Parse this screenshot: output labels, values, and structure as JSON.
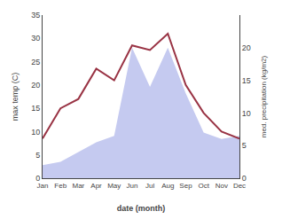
{
  "chart_data": {
    "type": "line",
    "xlabel": "date (month)",
    "ylabel": "max temp (C)",
    "y2label": "med. precipitation (kg/m2)",
    "categories": [
      "Jan",
      "Feb",
      "Mar",
      "Apr",
      "May",
      "Jun",
      "Jul",
      "Aug",
      "Sep",
      "Oct",
      "Nov",
      "Dec"
    ],
    "series": [
      {
        "type": "area",
        "axis": "y2",
        "color": "#c5caf0",
        "values": [
          2.0,
          2.5,
          4.0,
          5.5,
          6.5,
          20.0,
          14.0,
          20.0,
          13.0,
          7.0,
          6.0,
          6.5
        ]
      },
      {
        "type": "line",
        "color": "#993344",
        "values": [
          8.5,
          15.0,
          17.0,
          23.5,
          21.0,
          28.5,
          27.5,
          31.0,
          20.0,
          14.0,
          10.0,
          8.5
        ]
      }
    ],
    "ylim": [
      0,
      35
    ],
    "yticks": [
      0,
      5,
      10,
      15,
      20,
      25,
      30,
      35
    ],
    "y2lim": [
      0,
      25
    ],
    "y2ticks": [
      0,
      5,
      10,
      15,
      20
    ],
    "grid": false
  }
}
